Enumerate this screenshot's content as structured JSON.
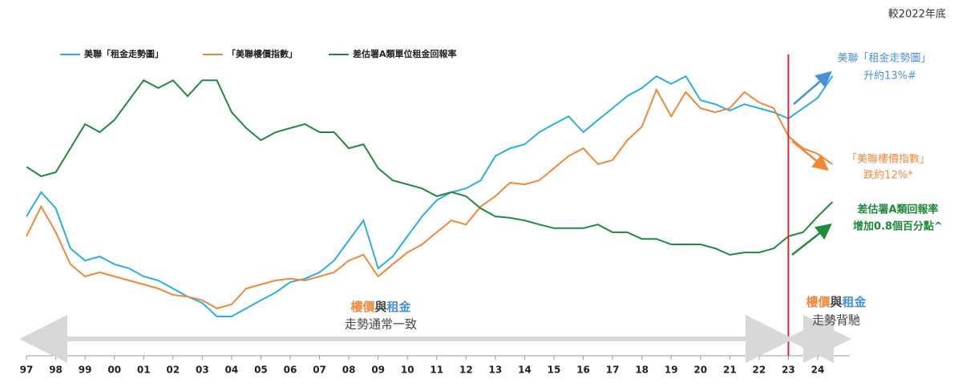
{
  "chart_data": {
    "type": "line",
    "corner_note": "較2022年底",
    "x": [
      1997,
      1997.5,
      1998,
      1998.5,
      1999,
      1999.5,
      2000,
      2000.5,
      2001,
      2001.5,
      2002,
      2002.5,
      2003,
      2003.5,
      2004,
      2004.5,
      2005,
      2005.5,
      2006,
      2006.5,
      2007,
      2007.5,
      2008,
      2008.5,
      2009,
      2009.5,
      2010,
      2010.5,
      2011,
      2011.5,
      2012,
      2012.5,
      2013,
      2013.5,
      2014,
      2014.5,
      2015,
      2015.5,
      2016,
      2016.5,
      2017,
      2017.5,
      2018,
      2018.5,
      2019,
      2019.5,
      2020,
      2020.5,
      2021,
      2021.5,
      2022,
      2022.5,
      2023,
      2023.5,
      2024,
      2024.5
    ],
    "xlim": [
      1997,
      2024
    ],
    "xticks": [
      {
        "value": 1997,
        "label": "97"
      },
      {
        "value": 1998,
        "label": "98"
      },
      {
        "value": 1999,
        "label": "99"
      },
      {
        "value": 2000,
        "label": "00"
      },
      {
        "value": 2001,
        "label": "01"
      },
      {
        "value": 2002,
        "label": "02"
      },
      {
        "value": 2003,
        "label": "03"
      },
      {
        "value": 2004,
        "label": "04"
      },
      {
        "value": 2005,
        "label": "05"
      },
      {
        "value": 2006,
        "label": "06"
      },
      {
        "value": 2007,
        "label": "07"
      },
      {
        "value": 2008,
        "label": "08"
      },
      {
        "value": 2009,
        "label": "09"
      },
      {
        "value": 2010,
        "label": "10"
      },
      {
        "value": 2011,
        "label": "11"
      },
      {
        "value": 2012,
        "label": "12"
      },
      {
        "value": 2013,
        "label": "13"
      },
      {
        "value": 2014,
        "label": "14"
      },
      {
        "value": 2015,
        "label": "15"
      },
      {
        "value": 2016,
        "label": "16"
      },
      {
        "value": 2017,
        "label": "17"
      },
      {
        "value": 2018,
        "label": "18"
      },
      {
        "value": 2019,
        "label": "19"
      },
      {
        "value": 2020,
        "label": "20"
      },
      {
        "value": 2021,
        "label": "21"
      },
      {
        "value": 2022,
        "label": "22"
      },
      {
        "value": 2023,
        "label": "23"
      },
      {
        "value": 2024,
        "label": "24"
      }
    ],
    "ylim": [
      0,
      100
    ],
    "series": [
      {
        "name": "美聯「租金走勢圖」",
        "color": "#29aee6",
        "values": [
          47.2,
          55.6,
          50,
          36.1,
          31.9,
          33.3,
          30.6,
          29.2,
          26.4,
          25,
          22.2,
          19.4,
          17.2,
          12.5,
          12.5,
          15.3,
          18.1,
          20.8,
          24.4,
          25.6,
          27.8,
          31.9,
          38.9,
          45.8,
          29.2,
          33.3,
          40.3,
          47.2,
          52.8,
          55.6,
          56.9,
          59.7,
          68.1,
          70.8,
          72.2,
          76.4,
          79.2,
          81.9,
          76.4,
          80.6,
          84.7,
          88.9,
          91.7,
          95.8,
          93.1,
          95.8,
          87.5,
          86.1,
          83.9,
          86.1,
          84.7,
          83.3,
          81.1,
          84.7,
          88.3,
          95.8
        ]
      },
      {
        "name": "「美聯樓價指數」",
        "color": "#f0883a",
        "values": [
          40.3,
          50.6,
          41.7,
          30.6,
          26.4,
          27.8,
          26.4,
          25,
          23.6,
          22.2,
          20,
          19.4,
          18.1,
          15.3,
          16.7,
          22.2,
          23.6,
          25,
          25.6,
          25,
          26.4,
          27.8,
          31.9,
          33.9,
          26.4,
          30.6,
          34.7,
          37.5,
          41.7,
          45.8,
          44.4,
          50.6,
          54.2,
          58.9,
          58.3,
          59.7,
          63.9,
          68.1,
          70.8,
          65.3,
          66.7,
          73.6,
          78.3,
          91.1,
          81.9,
          90.3,
          84.7,
          83.3,
          84.7,
          90.3,
          86.7,
          84.7,
          75,
          70.8,
          68.9,
          65.3
        ]
      },
      {
        "name": "差估署A類單位租金回報率",
        "color": "#1f8a3c",
        "values": [
          64.4,
          61.1,
          62.5,
          70.8,
          79.2,
          76.4,
          80.6,
          87.5,
          94.4,
          91.7,
          94.4,
          88.9,
          94.4,
          94.4,
          83.3,
          77.8,
          73.6,
          76.4,
          77.8,
          79.2,
          76.4,
          76.4,
          70.8,
          72.2,
          63.9,
          59.7,
          58.3,
          56.9,
          54.2,
          55.6,
          54.2,
          50,
          47.2,
          46.7,
          45.8,
          44.4,
          43.1,
          43.1,
          43.1,
          44.4,
          41.7,
          41.7,
          39.4,
          39.4,
          37.5,
          37.5,
          37.5,
          36.1,
          33.9,
          34.7,
          34.7,
          36.1,
          40.3,
          41.7,
          47.2,
          52.2
        ]
      }
    ],
    "divider_x": 2023,
    "annotations": [
      {
        "lines": [
          [
            "樓價",
            "與",
            "租金"
          ],
          [
            "走勢通常一致"
          ]
        ]
      },
      {
        "lines": [
          [
            "樓價",
            "與",
            "租金"
          ],
          [
            "走勢背馳"
          ]
        ]
      },
      {
        "lines": [
          [
            "美聯「租金走勢圖」"
          ],
          [
            "升約13%#"
          ]
        ]
      },
      {
        "lines": [
          [
            "「美聯樓價指數」"
          ],
          [
            "跌約12%*"
          ]
        ]
      },
      {
        "lines": [
          [
            "差估署A類回報率"
          ],
          [
            "增加0.8個百分點^"
          ]
        ]
      }
    ]
  }
}
